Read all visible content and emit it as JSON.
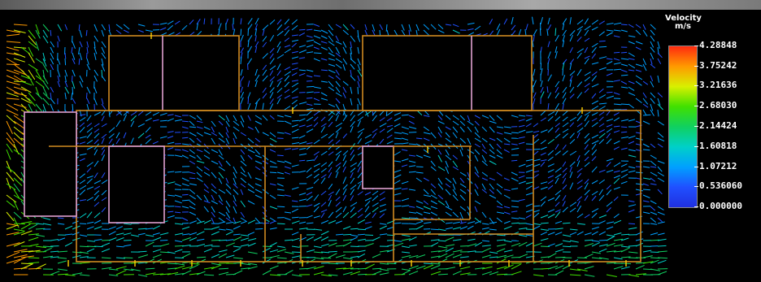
{
  "legend": {
    "title": "Velocity",
    "unit": "m/s",
    "ticks": [
      "4.28848",
      "3.75242",
      "3.21636",
      "2.68030",
      "2.14424",
      "1.60818",
      "1.07212",
      "0.536060",
      "0.000000"
    ],
    "colors": [
      "#ff2a10",
      "#ff9a00",
      "#d8f000",
      "#40e000",
      "#10d060",
      "#00d0c8",
      "#00a0ff",
      "#2050ff",
      "#2030e0"
    ]
  },
  "chart_data": {
    "type": "heatmap",
    "title": "Velocity",
    "unit": "m/s",
    "scale_range": [
      0.0,
      4.28848
    ],
    "scale_ticks": [
      4.28848,
      3.75242,
      3.21636,
      2.6803,
      2.14424,
      1.60818,
      1.07212,
      0.53606,
      0.0
    ]
  },
  "colors": {
    "background": "#000000",
    "wall": "#d08a20",
    "partition": "#e0a0d0"
  }
}
